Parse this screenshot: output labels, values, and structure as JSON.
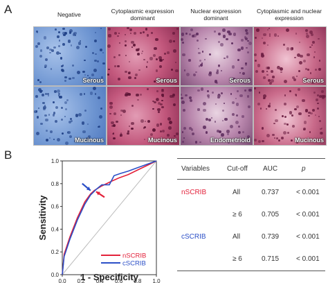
{
  "panel_a": {
    "letter": "A",
    "columns": [
      "Negative",
      "Cytoplasmic expression dominant",
      "Nuclear expression dominant",
      "Cytoplasmic and nuclear expression"
    ],
    "row_labels": [
      [
        "Serous",
        "Serous",
        "Serous",
        "Serous"
      ],
      [
        "Mucinous",
        "Mucinous",
        "Endometrioid",
        "Mucinous"
      ]
    ],
    "tile_colors": {
      "negative": "#7aa0d8",
      "cytoplasmic": "#c2577c",
      "nuclear": "#b987ad",
      "both": "#c96a8a"
    }
  },
  "panel_b": {
    "letter": "B",
    "table": {
      "headers": [
        "Variables",
        "Cut-off",
        "AUC",
        "p"
      ],
      "rows": [
        {
          "variable": "nSCRIB",
          "cutoff": "All",
          "auc": "0.737",
          "p": "< 0.001",
          "color": "#e3213a"
        },
        {
          "variable": "",
          "cutoff": "≥ 6",
          "auc": "0.705",
          "p": "< 0.001",
          "color": "#e3213a"
        },
        {
          "variable": "cSCRIB",
          "cutoff": "All",
          "auc": "0.739",
          "p": "< 0.001",
          "color": "#2b4fc7"
        },
        {
          "variable": "",
          "cutoff": "≥ 6",
          "auc": "0.715",
          "p": "< 0.001",
          "color": "#2b4fc7"
        }
      ]
    }
  },
  "chart_data": {
    "type": "line",
    "xlabel": "1 - Specificity",
    "ylabel": "Sensitivity",
    "xlim": [
      0,
      1
    ],
    "ylim": [
      0,
      1
    ],
    "xticks": [
      "0.0",
      "0.2",
      "0.4",
      "0.6",
      "0.8",
      "1.0"
    ],
    "yticks": [
      "0.0",
      "0.2",
      "0.4",
      "0.6",
      "0.8",
      "1.0"
    ],
    "legend_position": "bottom-right",
    "series": [
      {
        "name": "nSCRIB",
        "color": "#e3213a",
        "x": [
          0,
          0.02,
          0.08,
          0.16,
          0.24,
          0.3,
          0.34,
          0.42,
          0.52,
          0.6,
          0.7,
          0.8,
          0.9,
          1.0
        ],
        "y": [
          0,
          0.18,
          0.33,
          0.5,
          0.64,
          0.71,
          0.74,
          0.78,
          0.82,
          0.85,
          0.88,
          0.92,
          0.96,
          1.0
        ]
      },
      {
        "name": "cSCRIB",
        "color": "#2b4fc7",
        "x": [
          0,
          0.02,
          0.08,
          0.16,
          0.24,
          0.3,
          0.36,
          0.42,
          0.5,
          0.55,
          0.62,
          0.7,
          0.8,
          0.9,
          1.0
        ],
        "y": [
          0,
          0.16,
          0.31,
          0.48,
          0.62,
          0.7,
          0.75,
          0.79,
          0.79,
          0.87,
          0.89,
          0.91,
          0.94,
          0.97,
          1.0
        ]
      }
    ],
    "reference_line": {
      "x": [
        0,
        1
      ],
      "y": [
        0,
        1
      ],
      "color": "#bbbbbb"
    },
    "arrows": [
      {
        "color": "#2b4fc7",
        "target": [
          0.3,
          0.74
        ]
      },
      {
        "color": "#e3213a",
        "target": [
          0.36,
          0.73
        ]
      }
    ]
  }
}
